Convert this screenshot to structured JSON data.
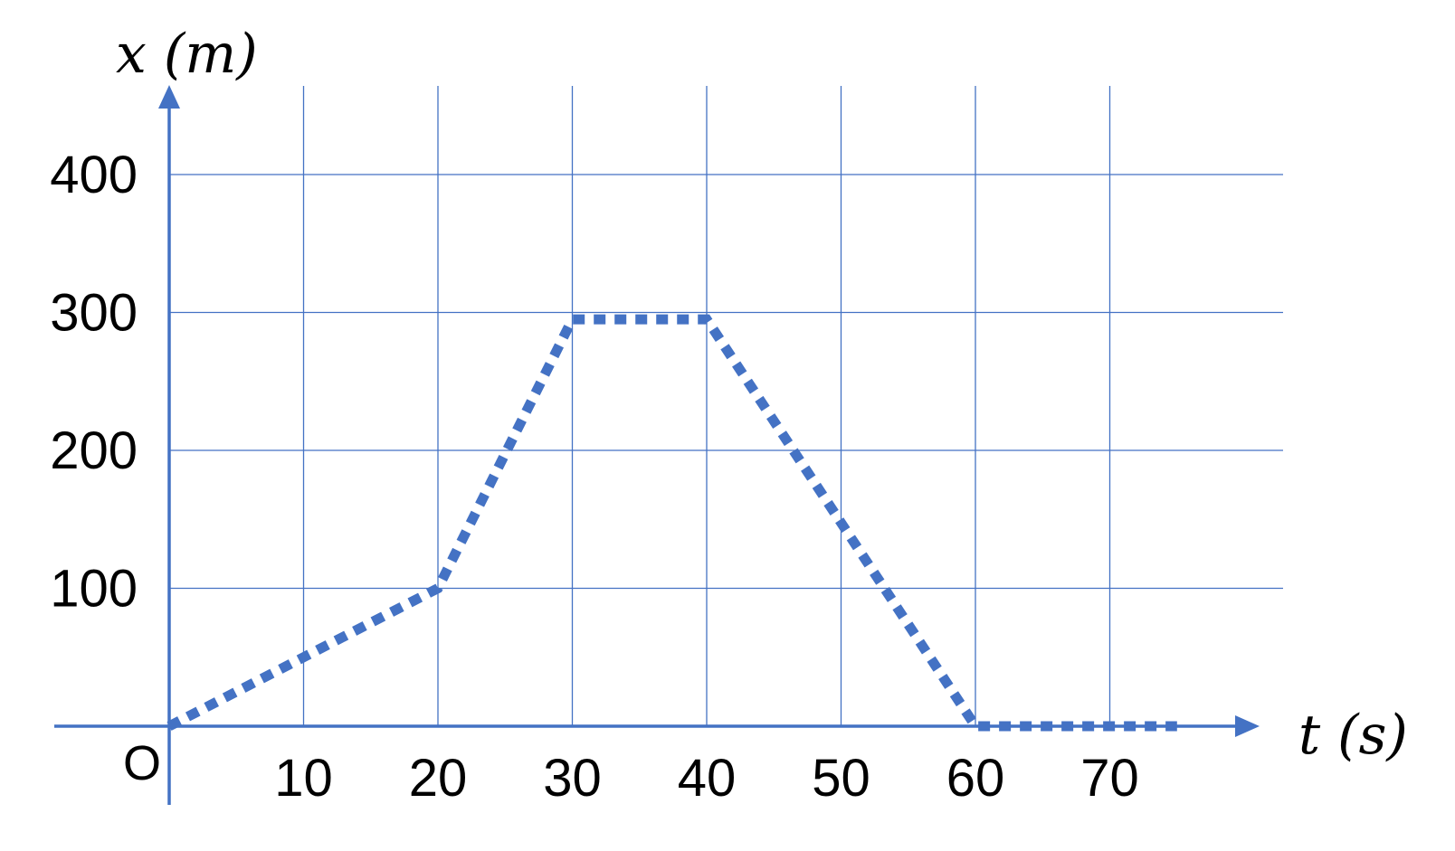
{
  "chart_data": {
    "type": "line",
    "title": "",
    "xlabel": "t (s)",
    "ylabel": "x (m)",
    "origin_label": "O",
    "xlim": [
      0,
      80
    ],
    "ylim": [
      0,
      450
    ],
    "x_ticks": [
      10,
      20,
      30,
      40,
      50,
      60,
      70
    ],
    "y_ticks": [
      100,
      200,
      300,
      400
    ],
    "grid": true,
    "line_color": "#4472c4",
    "line_style": "dotted",
    "series": [
      {
        "x": [
          0,
          20,
          30,
          40,
          60,
          75
        ],
        "y": [
          0,
          100,
          295,
          295,
          0,
          0
        ]
      }
    ]
  }
}
